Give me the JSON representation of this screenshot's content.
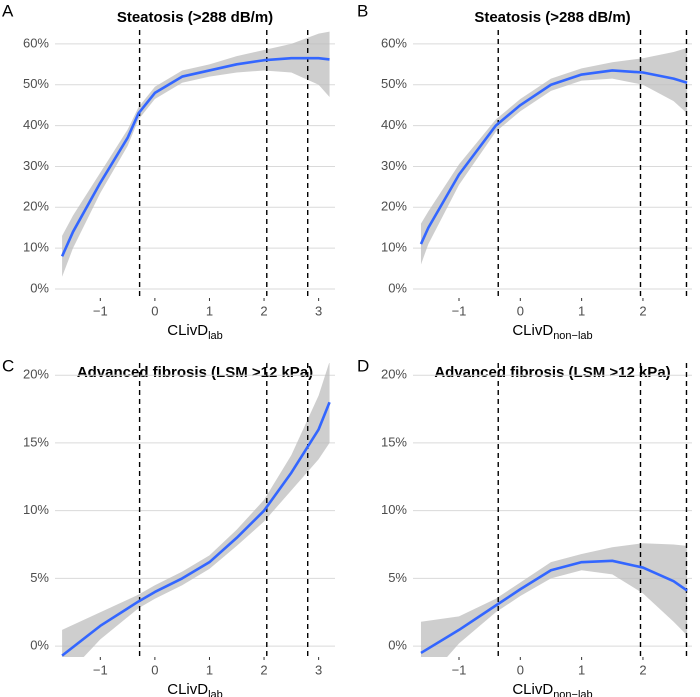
{
  "chart_data": [
    {
      "type": "line",
      "panel": "A",
      "title": "Steatosis (>288 dB/m)",
      "xlabel": "CLivD",
      "xlabel_subscript": "lab",
      "x": [
        -1.7,
        -1.5,
        -1,
        -0.5,
        -0.3,
        0,
        0.5,
        1,
        1.5,
        2,
        2.5,
        3,
        3.2
      ],
      "values": [
        8,
        14,
        26,
        37,
        43,
        48,
        52,
        53.5,
        55,
        56,
        56.5,
        56.5,
        56.2
      ],
      "ci_lower": [
        3,
        10,
        23.5,
        35,
        41.5,
        46.5,
        50.5,
        52,
        53,
        53.5,
        53,
        50,
        47
      ],
      "ci_upper": [
        13,
        18,
        28.5,
        39,
        44.5,
        49.5,
        53.5,
        55,
        57,
        58.5,
        60,
        62.5,
        63
      ],
      "vlines": [
        -0.28,
        2.05,
        2.8
      ],
      "color": "#3366ff",
      "band_color": "#bebebe",
      "xlim": [
        -1.83,
        3.3
      ],
      "ylim": [
        -2.2,
        63.4
      ],
      "xticks": [
        {
          "value": -1,
          "label": "−1"
        },
        0,
        1,
        2,
        3
      ],
      "yticks": [
        {
          "value": 0,
          "label": "0%"
        },
        {
          "value": 10,
          "label": "10%"
        },
        {
          "value": 20,
          "label": "20%"
        },
        {
          "value": 30,
          "label": "30%"
        },
        {
          "value": 40,
          "label": "40%"
        },
        {
          "value": 50,
          "label": "50%"
        },
        {
          "value": 60,
          "label": "60%"
        }
      ],
      "grid": true
    },
    {
      "type": "line",
      "panel": "B",
      "title": "Steatosis (>288 dB/m)",
      "xlabel": "CLivD",
      "xlabel_subscript": "non−lab",
      "x": [
        -1.62,
        -1.5,
        -1,
        -0.4,
        0,
        0.5,
        1,
        1.5,
        2,
        2.5,
        2.72
      ],
      "values": [
        11,
        15,
        28,
        40,
        45,
        50,
        52.5,
        53.5,
        53,
        51.5,
        50.5
      ],
      "ci_lower": [
        6,
        11,
        25.5,
        38.5,
        43.5,
        48.5,
        51,
        51.5,
        50,
        46,
        43
      ],
      "ci_upper": [
        16,
        19,
        30.5,
        41.5,
        46.5,
        51.5,
        54,
        55.5,
        56.5,
        58,
        59
      ],
      "vlines": [
        -0.36,
        1.96,
        2.71
      ],
      "color": "#3366ff",
      "band_color": "#bebebe",
      "xlim": [
        -1.75,
        2.8
      ],
      "ylim": [
        -2.2,
        63.4
      ],
      "xticks": [
        {
          "value": -1,
          "label": "−1"
        },
        0,
        1,
        2
      ],
      "yticks": [
        {
          "value": 0,
          "label": "0%"
        },
        {
          "value": 10,
          "label": "10%"
        },
        {
          "value": 20,
          "label": "20%"
        },
        {
          "value": 30,
          "label": "30%"
        },
        {
          "value": 40,
          "label": "40%"
        },
        {
          "value": 50,
          "label": "50%"
        },
        {
          "value": 60,
          "label": "60%"
        }
      ],
      "grid": true
    },
    {
      "type": "line",
      "panel": "C",
      "title": "Advanced fibrosis (LSM >12 kPa)",
      "xlabel": "CLivD",
      "xlabel_subscript": "lab",
      "x": [
        -1.7,
        -1,
        -0.3,
        0,
        0.5,
        1,
        1.5,
        2,
        2.5,
        3,
        3.2
      ],
      "values": [
        -0.7,
        1.5,
        3.3,
        4,
        5,
        6.2,
        8,
        10,
        12.8,
        16,
        18
      ],
      "ci_lower": [
        -2.5,
        0.5,
        2.8,
        3.5,
        4.5,
        5.7,
        7.4,
        9.2,
        11.5,
        13.8,
        15
      ],
      "ci_upper": [
        1.2,
        2.5,
        3.8,
        4.5,
        5.5,
        6.7,
        8.6,
        10.8,
        14.1,
        18.5,
        21
      ],
      "vlines": [
        -0.28,
        2.05,
        2.8
      ],
      "color": "#3366ff",
      "band_color": "#bebebe",
      "xlim": [
        -1.83,
        3.3
      ],
      "ylim": [
        -0.8,
        20.9
      ],
      "xticks": [
        {
          "value": -1,
          "label": "−1"
        },
        0,
        1,
        2,
        3
      ],
      "yticks": [
        {
          "value": 0,
          "label": "0%"
        },
        {
          "value": 5,
          "label": "5%"
        },
        {
          "value": 10,
          "label": "10%"
        },
        {
          "value": 15,
          "label": "15%"
        },
        {
          "value": 20,
          "label": "20%"
        }
      ],
      "grid": true
    },
    {
      "type": "line",
      "panel": "D",
      "title": "Advanced fibrosis (LSM >12 kPa)",
      "xlabel": "CLivD",
      "xlabel_subscript": "non−lab",
      "x": [
        -1.62,
        -1,
        -0.4,
        0,
        0.5,
        1,
        1.5,
        2,
        2.5,
        2.72
      ],
      "values": [
        -0.5,
        1.2,
        3,
        4.2,
        5.6,
        6.2,
        6.3,
        5.8,
        4.8,
        4.1
      ],
      "ci_lower": [
        -3,
        0.2,
        2.5,
        3.7,
        5,
        5.6,
        5.3,
        3.9,
        1.8,
        0.8
      ],
      "ci_upper": [
        1.8,
        2.2,
        3.5,
        4.7,
        6.2,
        6.8,
        7.3,
        7.6,
        7.5,
        7.4
      ],
      "vlines": [
        -0.36,
        1.96,
        2.71
      ],
      "color": "#3366ff",
      "band_color": "#bebebe",
      "xlim": [
        -1.75,
        2.8
      ],
      "ylim": [
        -0.8,
        20.9
      ],
      "xticks": [
        {
          "value": -1,
          "label": "−1"
        },
        0,
        1,
        2
      ],
      "yticks": [
        {
          "value": 0,
          "label": "0%"
        },
        {
          "value": 5,
          "label": "5%"
        },
        {
          "value": 10,
          "label": "10%"
        },
        {
          "value": 15,
          "label": "15%"
        },
        {
          "value": 20,
          "label": "20%"
        }
      ],
      "grid": true
    }
  ]
}
